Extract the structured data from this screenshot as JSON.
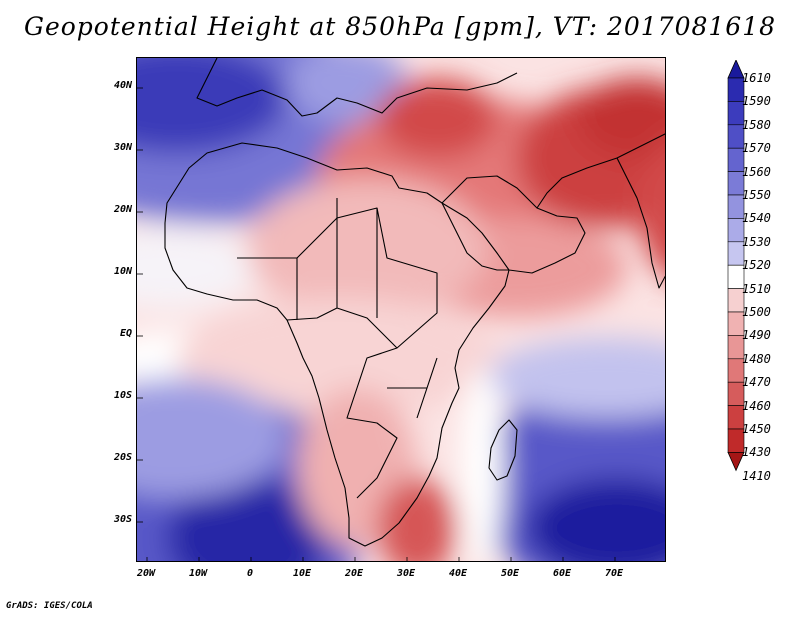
{
  "title": "Geopotential Height at 850hPa [gpm], VT: 2017081618",
  "credit": "GrADS: IGES/COLA",
  "lat_labels": [
    "40N",
    "30N",
    "20N",
    "10N",
    "EQ",
    "10S",
    "20S",
    "30S"
  ],
  "lon_labels": [
    "20W",
    "10W",
    "0",
    "10E",
    "20E",
    "30E",
    "40E",
    "50E",
    "60E",
    "70E"
  ],
  "colorbar": {
    "levels": [
      "1610",
      "1590",
      "1580",
      "1570",
      "1560",
      "1550",
      "1540",
      "1530",
      "1520",
      "1510",
      "1500",
      "1490",
      "1480",
      "1470",
      "1460",
      "1450",
      "1430",
      "1410"
    ],
    "colors": [
      "#1a1a9c",
      "#2b2bb0",
      "#3c3cbd",
      "#4f4fc6",
      "#6464cf",
      "#7b7bd7",
      "#9393df",
      "#ababe8",
      "#c6c6f0",
      "#ffffff",
      "#f6d0d0",
      "#f0b2b2",
      "#e89696",
      "#e07878",
      "#d65c5c",
      "#cc4040",
      "#c02a2a",
      "#a41616"
    ]
  },
  "colors": {
    "deep_blue": "#2222a8",
    "white": "#ffffff",
    "deep_red": "#c03030"
  }
}
